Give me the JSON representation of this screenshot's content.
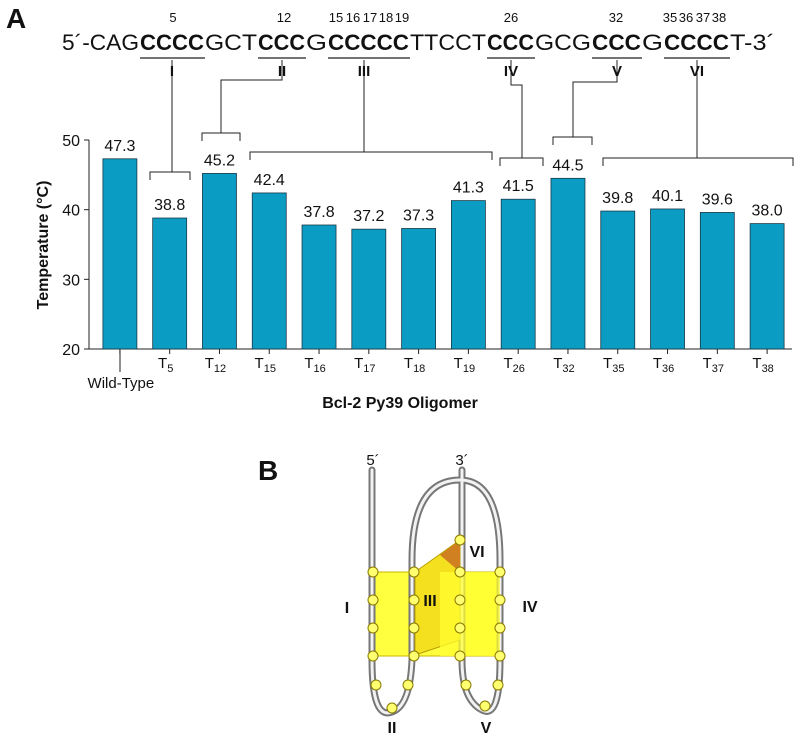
{
  "panel_a": {
    "label": "A",
    "sequence": [
      {
        "text": "5´-CAG",
        "bold": false
      },
      {
        "text": "CCCC",
        "bold": true
      },
      {
        "text": "GCT",
        "bold": false
      },
      {
        "text": "CCC",
        "bold": true
      },
      {
        "text": "G",
        "bold": false
      },
      {
        "text": "CCCCC",
        "bold": true
      },
      {
        "text": "TTCCT",
        "bold": false
      },
      {
        "text": "CCC",
        "bold": true
      },
      {
        "text": "GCG",
        "bold": false
      },
      {
        "text": "CCC",
        "bold": true
      },
      {
        "text": "G",
        "bold": false
      },
      {
        "text": "CCCC",
        "bold": true
      },
      {
        "text": "T-3´",
        "bold": false
      }
    ],
    "positions": [
      5,
      12,
      15,
      16,
      17,
      18,
      19,
      26,
      32,
      35,
      36,
      37,
      38
    ],
    "motifs": [
      "I",
      "II",
      "III",
      "IV",
      "V",
      "VI"
    ]
  },
  "chart_data": {
    "type": "bar",
    "x_label": "Bcl-2 Py39 Oligomer",
    "y_label": "Temperature (°C)",
    "categories": [
      "Wild-Type",
      "T5",
      "T12",
      "T15",
      "T16",
      "T17",
      "T18",
      "T19",
      "T26",
      "T32",
      "T35",
      "T36",
      "T37",
      "T38"
    ],
    "values": [
      47.3,
      38.8,
      45.2,
      42.4,
      37.8,
      37.2,
      37.3,
      41.3,
      41.5,
      44.5,
      39.8,
      40.1,
      39.6,
      38.0
    ],
    "value_labels": [
      "47.3",
      "38.8",
      "45.2",
      "42.4",
      "37.8",
      "37.2",
      "37.3",
      "41.3",
      "41.5",
      "44.5",
      "39.8",
      "40.1",
      "39.6",
      "38.0"
    ],
    "color": "#0a9cc2",
    "ylim": [
      20,
      50
    ],
    "yticks": [
      20,
      30,
      40,
      50
    ],
    "grid": false
  },
  "panel_b": {
    "label": "B",
    "ends": [
      "5´",
      "3´"
    ],
    "motifs": [
      "I",
      "II",
      "III",
      "IV",
      "V",
      "VI"
    ]
  }
}
